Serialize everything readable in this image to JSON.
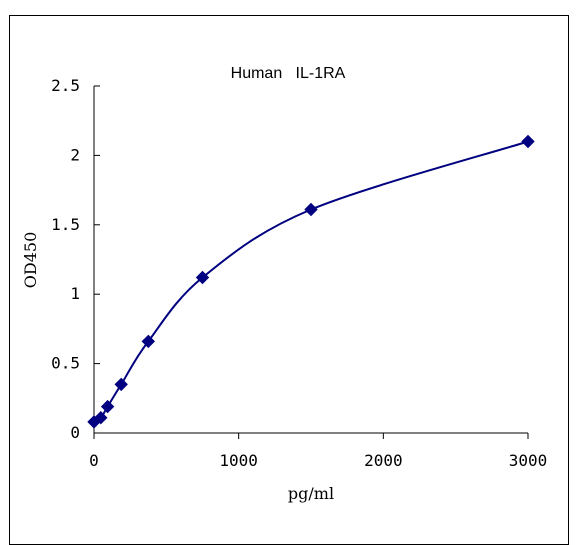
{
  "chart_data": {
    "type": "scatter",
    "title": "Human   IL-1RA",
    "xlabel": "pg/ml",
    "ylabel": "OD450",
    "xlim": [
      0,
      3000
    ],
    "ylim": [
      0,
      2.5
    ],
    "x_ticks": [
      0,
      1000,
      2000,
      3000
    ],
    "y_ticks": [
      0,
      0.5,
      1,
      1.5,
      2,
      2.5
    ],
    "x_tick_labels": [
      "0",
      "1000",
      "2000",
      "3000"
    ],
    "y_tick_labels": [
      "0",
      "0.5",
      "1",
      "1.5",
      "2",
      "2.5"
    ],
    "grid": false,
    "legend": "none",
    "series": [
      {
        "x": [
          0,
          47,
          94,
          188,
          375,
          750,
          1500,
          3000
        ],
        "y": [
          0.08,
          0.11,
          0.19,
          0.35,
          0.66,
          1.12,
          1.61,
          2.1
        ],
        "color": "#000080",
        "marker": "diamond",
        "fit": "smooth"
      }
    ]
  }
}
